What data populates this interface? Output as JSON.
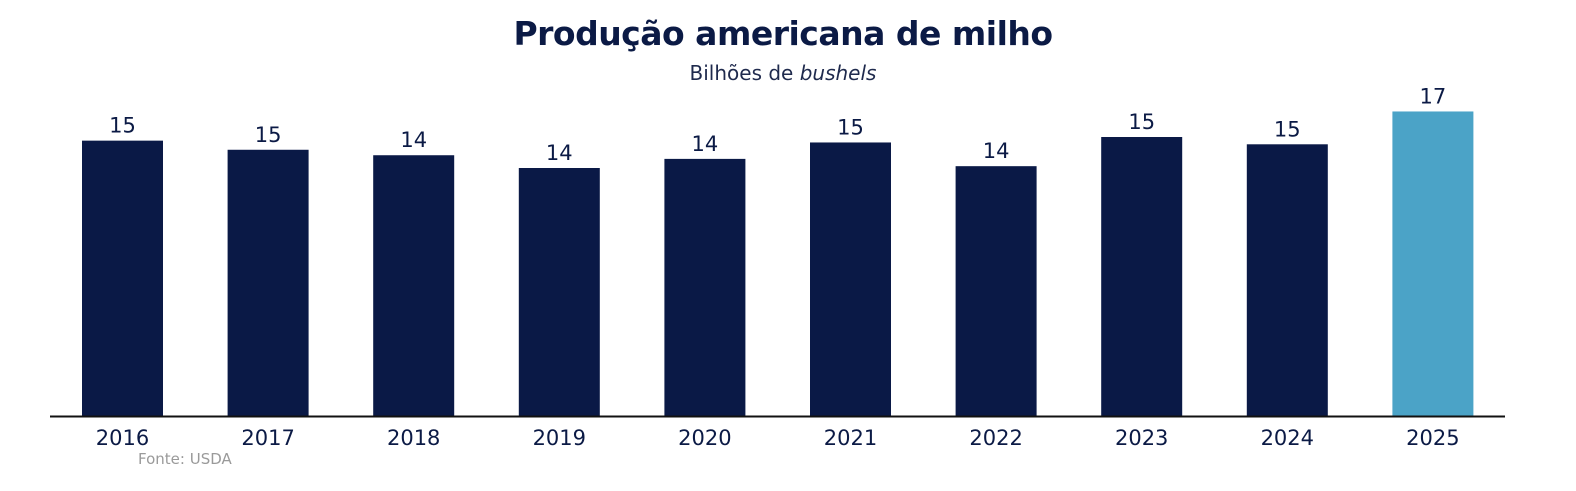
{
  "chart_data": {
    "type": "bar",
    "title": "Produção americana de milho",
    "subtitle_prefix": "Bilhões de ",
    "subtitle_unit": "bushels",
    "categories": [
      "2016",
      "2017",
      "2018",
      "2019",
      "2020",
      "2021",
      "2022",
      "2023",
      "2024",
      "2025"
    ],
    "values": [
      15.1,
      14.6,
      14.3,
      13.6,
      14.1,
      15.0,
      13.7,
      15.3,
      14.9,
      16.7
    ],
    "data_labels": [
      "15",
      "15",
      "14",
      "14",
      "14",
      "15",
      "14",
      "15",
      "15",
      "17"
    ],
    "colors": [
      "#0a1946",
      "#0a1946",
      "#0a1946",
      "#0a1946",
      "#0a1946",
      "#0a1946",
      "#0a1946",
      "#0a1946",
      "#0a1946",
      "#4ba3c7"
    ],
    "ylim": [
      0,
      17
    ],
    "grid": false,
    "source": "Fonte: USDA"
  }
}
